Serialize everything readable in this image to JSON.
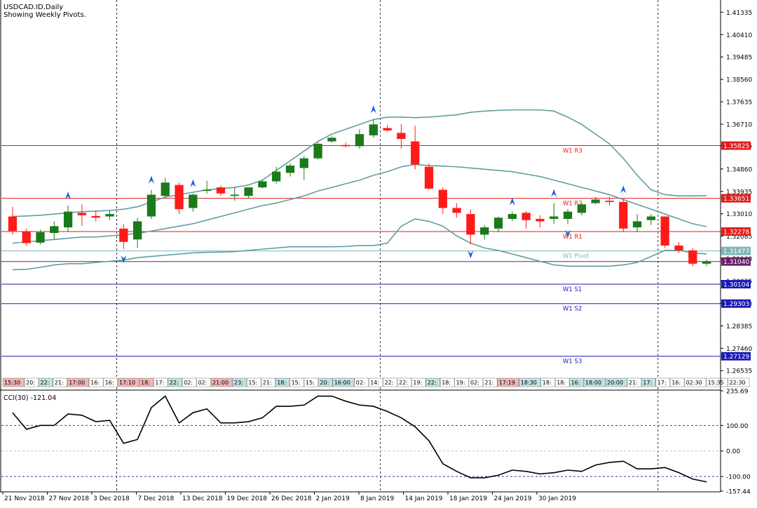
{
  "header": {
    "symbol_line": "USDCAD.ID,Daily",
    "subtitle": "Showing Weekly Pivots."
  },
  "colors": {
    "bull": "#1b7a1b",
    "bear": "#ff1a1a",
    "band": "#5f9ea0",
    "resistance": "#e31b1b",
    "support": "#1a1ab8",
    "pivot": "#7fb5b5",
    "price_tag": "#6b1f6b",
    "arrow": "#1f5fd6"
  },
  "chart_data": [
    {
      "type": "candlestick",
      "title": "USDCAD.ID,Daily",
      "subtitle": "Showing Weekly Pivots.",
      "ylim": [
        1.2576,
        1.4175
      ],
      "y_ticks": [
        "1.41335",
        "1.40410",
        "1.39485",
        "1.38560",
        "1.37635",
        "1.36710",
        "1.35825",
        "1.34860",
        "1.33935",
        "1.33010",
        "1.32085",
        "1.31160",
        "1.30235",
        "1.29310",
        "1.28385",
        "1.27460",
        "1.26535"
      ],
      "x_tick_labels": [
        "21 Nov 2018",
        "27 Nov 2018",
        "3 Dec 2018",
        "7 Dec 2018",
        "13 Dec 2018",
        "19 Dec 2018",
        "26 Dec 2018",
        "2 Jan 2019",
        "8 Jan 2019",
        "14 Jan 2019",
        "18 Jan 2019",
        "24 Jan 2019",
        "30 Jan 2019"
      ],
      "period_separator_x_index": [
        7.5,
        26.5,
        46.5
      ],
      "candles": [
        {
          "o": 1.329,
          "h": 1.333,
          "l": 1.3215,
          "c": 1.323
        },
        {
          "o": 1.3228,
          "h": 1.324,
          "l": 1.317,
          "c": 1.318
        },
        {
          "o": 1.3182,
          "h": 1.3235,
          "l": 1.3175,
          "c": 1.3225
        },
        {
          "o": 1.3222,
          "h": 1.327,
          "l": 1.3195,
          "c": 1.325
        },
        {
          "o": 1.3245,
          "h": 1.3335,
          "l": 1.3225,
          "c": 1.331
        },
        {
          "o": 1.3305,
          "h": 1.334,
          "l": 1.325,
          "c": 1.3295
        },
        {
          "o": 1.3292,
          "h": 1.3315,
          "l": 1.327,
          "c": 1.3285
        },
        {
          "o": 1.329,
          "h": 1.3315,
          "l": 1.3275,
          "c": 1.33
        },
        {
          "o": 1.324,
          "h": 1.3258,
          "l": 1.3155,
          "c": 1.3185
        },
        {
          "o": 1.3195,
          "h": 1.3285,
          "l": 1.316,
          "c": 1.327
        },
        {
          "o": 1.329,
          "h": 1.34,
          "l": 1.328,
          "c": 1.338
        },
        {
          "o": 1.3375,
          "h": 1.345,
          "l": 1.337,
          "c": 1.343
        },
        {
          "o": 1.342,
          "h": 1.343,
          "l": 1.33,
          "c": 1.332
        },
        {
          "o": 1.3325,
          "h": 1.3385,
          "l": 1.331,
          "c": 1.338
        },
        {
          "o": 1.34,
          "h": 1.3438,
          "l": 1.3385,
          "c": 1.34
        },
        {
          "o": 1.341,
          "h": 1.3418,
          "l": 1.3375,
          "c": 1.3385
        },
        {
          "o": 1.3375,
          "h": 1.341,
          "l": 1.3355,
          "c": 1.338
        },
        {
          "o": 1.3375,
          "h": 1.341,
          "l": 1.3365,
          "c": 1.341
        },
        {
          "o": 1.341,
          "h": 1.344,
          "l": 1.3405,
          "c": 1.3435
        },
        {
          "o": 1.3435,
          "h": 1.3495,
          "l": 1.3425,
          "c": 1.3475
        },
        {
          "o": 1.347,
          "h": 1.351,
          "l": 1.3455,
          "c": 1.35
        },
        {
          "o": 1.349,
          "h": 1.354,
          "l": 1.344,
          "c": 1.353
        },
        {
          "o": 1.353,
          "h": 1.3595,
          "l": 1.3525,
          "c": 1.359
        },
        {
          "o": 1.36,
          "h": 1.362,
          "l": 1.3595,
          "c": 1.3615
        },
        {
          "o": 1.3585,
          "h": 1.3595,
          "l": 1.3575,
          "c": 1.358
        },
        {
          "o": 1.358,
          "h": 1.365,
          "l": 1.357,
          "c": 1.363
        },
        {
          "o": 1.3625,
          "h": 1.369,
          "l": 1.3615,
          "c": 1.367
        },
        {
          "o": 1.3655,
          "h": 1.3668,
          "l": 1.364,
          "c": 1.3645
        },
        {
          "o": 1.3635,
          "h": 1.3672,
          "l": 1.357,
          "c": 1.361
        },
        {
          "o": 1.36,
          "h": 1.3665,
          "l": 1.3485,
          "c": 1.3505
        },
        {
          "o": 1.3495,
          "h": 1.351,
          "l": 1.34,
          "c": 1.3405
        },
        {
          "o": 1.34,
          "h": 1.341,
          "l": 1.33,
          "c": 1.3325
        },
        {
          "o": 1.3325,
          "h": 1.3345,
          "l": 1.3285,
          "c": 1.3305
        },
        {
          "o": 1.33,
          "h": 1.332,
          "l": 1.3175,
          "c": 1.3215
        },
        {
          "o": 1.3215,
          "h": 1.3255,
          "l": 1.3195,
          "c": 1.3245
        },
        {
          "o": 1.324,
          "h": 1.329,
          "l": 1.3225,
          "c": 1.3285
        },
        {
          "o": 1.328,
          "h": 1.331,
          "l": 1.327,
          "c": 1.33
        },
        {
          "o": 1.3305,
          "h": 1.3312,
          "l": 1.324,
          "c": 1.3275
        },
        {
          "o": 1.328,
          "h": 1.3295,
          "l": 1.3245,
          "c": 1.327
        },
        {
          "o": 1.328,
          "h": 1.3345,
          "l": 1.326,
          "c": 1.329
        },
        {
          "o": 1.328,
          "h": 1.332,
          "l": 1.326,
          "c": 1.331
        },
        {
          "o": 1.3305,
          "h": 1.3345,
          "l": 1.3295,
          "c": 1.334
        },
        {
          "o": 1.3345,
          "h": 1.337,
          "l": 1.334,
          "c": 1.336
        },
        {
          "o": 1.3355,
          "h": 1.337,
          "l": 1.3335,
          "c": 1.335
        },
        {
          "o": 1.335,
          "h": 1.336,
          "l": 1.3225,
          "c": 1.324
        },
        {
          "o": 1.3245,
          "h": 1.33,
          "l": 1.3225,
          "c": 1.327
        },
        {
          "o": 1.3275,
          "h": 1.33,
          "l": 1.3255,
          "c": 1.329
        },
        {
          "o": 1.329,
          "h": 1.329,
          "l": 1.316,
          "c": 1.317
        },
        {
          "o": 1.317,
          "h": 1.3185,
          "l": 1.314,
          "c": 1.315
        },
        {
          "o": 1.315,
          "h": 1.316,
          "l": 1.3085,
          "c": 1.3095
        },
        {
          "o": 1.3095,
          "h": 1.3112,
          "l": 1.3085,
          "c": 1.3104
        }
      ],
      "bollinger": {
        "upper": [
          1.329,
          1.3292,
          1.3295,
          1.33,
          1.3305,
          1.331,
          1.3312,
          1.3315,
          1.332,
          1.333,
          1.335,
          1.337,
          1.338,
          1.339,
          1.34,
          1.3405,
          1.341,
          1.342,
          1.344,
          1.348,
          1.352,
          1.356,
          1.36,
          1.363,
          1.365,
          1.367,
          1.369,
          1.37,
          1.37,
          1.3698,
          1.37,
          1.3705,
          1.371,
          1.372,
          1.3725,
          1.3728,
          1.373,
          1.373,
          1.373,
          1.3725,
          1.37,
          1.367,
          1.363,
          1.359,
          1.353,
          1.346,
          1.34,
          1.338,
          1.3375,
          1.3375,
          1.3376
        ],
        "middle": [
          1.318,
          1.3185,
          1.319,
          1.3195,
          1.32,
          1.3205,
          1.3205,
          1.321,
          1.3215,
          1.322,
          1.323,
          1.324,
          1.325,
          1.326,
          1.3275,
          1.329,
          1.3305,
          1.332,
          1.3335,
          1.3345,
          1.336,
          1.3375,
          1.3395,
          1.341,
          1.3425,
          1.344,
          1.346,
          1.3475,
          1.3495,
          1.3505,
          1.35,
          1.3498,
          1.3495,
          1.349,
          1.3485,
          1.348,
          1.3475,
          1.3465,
          1.3455,
          1.344,
          1.3425,
          1.341,
          1.3395,
          1.338,
          1.336,
          1.334,
          1.332,
          1.33,
          1.328,
          1.326,
          1.3248
        ],
        "lower": [
          1.307,
          1.3072,
          1.308,
          1.309,
          1.3095,
          1.3095,
          1.31,
          1.3105,
          1.311,
          1.312,
          1.3125,
          1.313,
          1.3135,
          1.314,
          1.3142,
          1.3143,
          1.3145,
          1.315,
          1.3155,
          1.316,
          1.3165,
          1.3165,
          1.3165,
          1.3165,
          1.3166,
          1.317,
          1.317,
          1.318,
          1.325,
          1.328,
          1.327,
          1.325,
          1.321,
          1.318,
          1.316,
          1.315,
          1.3135,
          1.312,
          1.3105,
          1.309,
          1.3085,
          1.3085,
          1.3085,
          1.3085,
          1.309,
          1.31,
          1.3125,
          1.315,
          1.315,
          1.314,
          1.3135
        ]
      },
      "fractal_up_index": [
        4,
        10,
        13,
        26,
        36,
        39,
        44
      ],
      "fractal_down_index": [
        8,
        33,
        40
      ],
      "pivot_levels": [
        {
          "name": "W1 R3",
          "value": 1.35825,
          "kind": "resistance"
        },
        {
          "name": "W1 R2",
          "value": 1.33651,
          "kind": "resistance"
        },
        {
          "name": "W1 R1",
          "value": 1.32278,
          "kind": "resistance"
        },
        {
          "name": "W1 Pivot",
          "value": 1.31477,
          "kind": "pivot"
        },
        {
          "name": "W1 S1",
          "value": 1.30104,
          "kind": "support"
        },
        {
          "name": "W1 S2",
          "value": 1.29303,
          "kind": "support"
        },
        {
          "name": "W1 S3",
          "value": 1.27129,
          "kind": "support"
        }
      ],
      "price_tags": [
        {
          "text": "1.35825",
          "value": 1.35825,
          "kind": "resistance"
        },
        {
          "text": "1.33651",
          "value": 1.33651,
          "kind": "resistance"
        },
        {
          "text": "1.32278",
          "value": 1.32278,
          "kind": "resistance"
        },
        {
          "text": "1.31477",
          "value": 1.31477,
          "kind": "pivot"
        },
        {
          "text": "1.31040",
          "value": 1.3104,
          "kind": "current"
        },
        {
          "text": "1.30104",
          "value": 1.30104,
          "kind": "support"
        },
        {
          "text": "1.29303",
          "value": 1.29303,
          "kind": "support"
        },
        {
          "text": "1.27129",
          "value": 1.27129,
          "kind": "support"
        }
      ],
      "current_price": 1.3104
    },
    {
      "type": "line",
      "title": "CCI(30) -121.04",
      "ylim": [
        -157.44,
        235.69
      ],
      "y_ticks": [
        "235.69",
        "100.00",
        "0.00",
        "-100.00",
        "-157.44"
      ],
      "levels": [
        100,
        0,
        -100
      ],
      "values": [
        150,
        85,
        100,
        100,
        145,
        140,
        115,
        120,
        30,
        45,
        170,
        215,
        110,
        150,
        165,
        110,
        110,
        115,
        130,
        175,
        175,
        180,
        215,
        215,
        195,
        180,
        175,
        155,
        130,
        95,
        40,
        -50,
        -80,
        -105,
        -105,
        -95,
        -75,
        -80,
        -90,
        -85,
        -75,
        -80,
        -55,
        -45,
        -40,
        -70,
        -70,
        -65,
        -85,
        -110,
        -121.04
      ]
    }
  ],
  "session_strip": [
    {
      "t": "15:30",
      "c": "#f2b4b4"
    },
    {
      "t": "20:",
      "c": "#ffffff"
    },
    {
      "t": "22:",
      "c": "#bfe3e3"
    },
    {
      "t": "21:",
      "c": "#ffffff"
    },
    {
      "t": "17:00",
      "c": "#f2b4b4"
    },
    {
      "t": "16:",
      "c": "#ffffff"
    },
    {
      "t": "16:",
      "c": "#ffffff"
    },
    {
      "t": "17:10",
      "c": "#f2b4b4"
    },
    {
      "t": "18:",
      "c": "#f2b4b4"
    },
    {
      "t": "17:",
      "c": "#ffffff"
    },
    {
      "t": "22:",
      "c": "#bfe3e3"
    },
    {
      "t": "02:",
      "c": "#ffffff"
    },
    {
      "t": "02:",
      "c": "#ffffff"
    },
    {
      "t": "21:00",
      "c": "#f2b4b4"
    },
    {
      "t": "23:",
      "c": "#bfe3e3"
    },
    {
      "t": "15:",
      "c": "#ffffff"
    },
    {
      "t": "21:",
      "c": "#ffffff"
    },
    {
      "t": "18:",
      "c": "#bfe3e3"
    },
    {
      "t": "15:",
      "c": "#ffffff"
    },
    {
      "t": "15:",
      "c": "#ffffff"
    },
    {
      "t": "20:",
      "c": "#bfe3e3"
    },
    {
      "t": "16:00",
      "c": "#bfe3e3"
    },
    {
      "t": "02:",
      "c": "#ffffff"
    },
    {
      "t": "14:",
      "c": "#ffffff"
    },
    {
      "t": "22:",
      "c": "#ffffff"
    },
    {
      "t": "22:",
      "c": "#ffffff"
    },
    {
      "t": "19:",
      "c": "#ffffff"
    },
    {
      "t": "22:",
      "c": "#bfe3e3"
    },
    {
      "t": "18:",
      "c": "#ffffff"
    },
    {
      "t": "19:",
      "c": "#ffffff"
    },
    {
      "t": "02:",
      "c": "#ffffff"
    },
    {
      "t": "21:",
      "c": "#ffffff"
    },
    {
      "t": "17:19",
      "c": "#f2b4b4"
    },
    {
      "t": "18:30",
      "c": "#bfe3e3"
    },
    {
      "t": "18:",
      "c": "#ffffff"
    },
    {
      "t": "18:",
      "c": "#ffffff"
    },
    {
      "t": "16:",
      "c": "#bfe3e3"
    },
    {
      "t": "18:00",
      "c": "#bfe3e3"
    },
    {
      "t": "20:00",
      "c": "#bfe3e3"
    },
    {
      "t": "21:",
      "c": "#ffffff"
    },
    {
      "t": "17:",
      "c": "#bfe3e3"
    },
    {
      "t": "17:",
      "c": "#ffffff"
    },
    {
      "t": "16:",
      "c": "#ffffff"
    },
    {
      "t": "02:30",
      "c": "#ffffff"
    },
    {
      "t": "15:35",
      "c": "#ffffff"
    },
    {
      "t": "22:30",
      "c": "#ffffff"
    }
  ]
}
